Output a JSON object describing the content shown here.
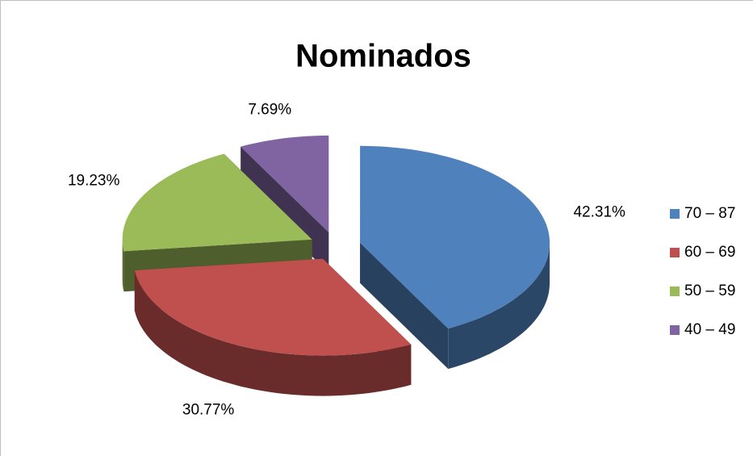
{
  "chart_data": {
    "type": "pie",
    "title": "Nominados",
    "categories": [
      "70 – 87",
      "60 – 69",
      "50 – 59",
      "40 – 49"
    ],
    "values": [
      42.31,
      30.77,
      19.23,
      7.69
    ],
    "value_labels": [
      "42.31%",
      "30.77%",
      "19.23%",
      "7.69%"
    ],
    "colors": [
      "#4f81bd",
      "#c0504d",
      "#9bbb59",
      "#8064a2"
    ],
    "legend": "right"
  }
}
